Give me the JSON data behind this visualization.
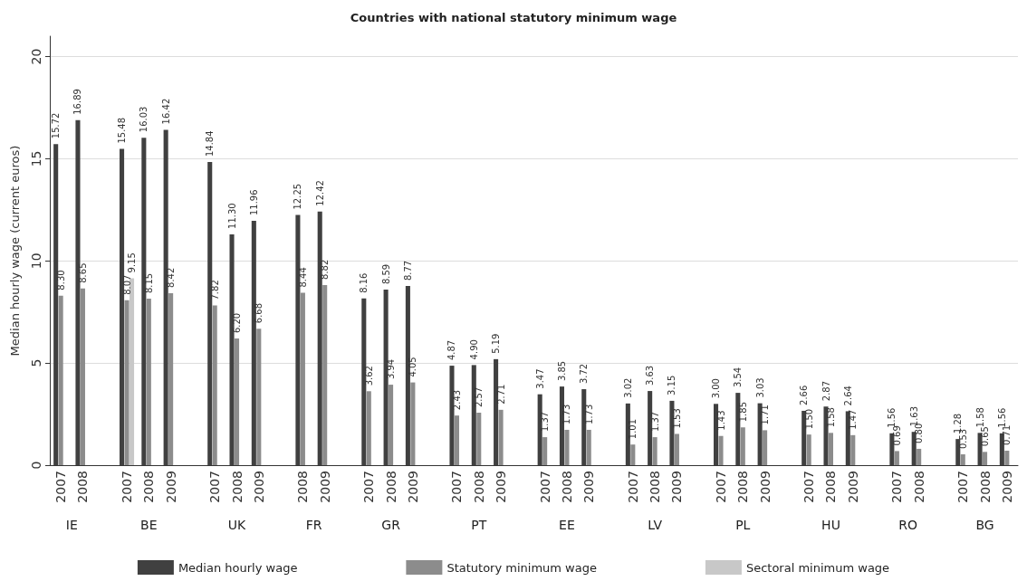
{
  "chart_data": {
    "type": "bar",
    "title": "Countries with national statutory minimum wage",
    "ylabel": "Median hourly wage (current euros)",
    "categories": [
      "2007",
      "2008",
      null,
      "2007",
      "2008",
      "2009",
      null,
      "2007",
      "2008",
      "2009",
      null,
      "2008",
      "2009",
      null,
      "2007",
      "2008",
      "2009",
      null,
      "2007",
      "2008",
      "2009",
      null,
      "2007",
      "2008",
      "2009",
      null,
      "2007",
      "2008",
      "2009",
      null,
      "2007",
      "2008",
      "2009",
      null,
      "2007",
      "2008",
      "2009",
      null,
      "2007",
      "2008",
      null,
      "2007",
      "2008",
      "2009"
    ],
    "annotations": [
      "IE",
      "BE",
      "UK",
      "FR",
      "GR",
      "PT",
      "EE",
      "LV",
      "PL",
      "HU",
      "RO",
      "BG"
    ],
    "series": [
      {
        "name": "Median hourly wage",
        "color": "#404040",
        "values": [
          15.72,
          16.89,
          null,
          15.48,
          16.03,
          16.42,
          null,
          14.84,
          11.3,
          11.96,
          null,
          12.25,
          12.42,
          null,
          8.16,
          8.59,
          8.77,
          null,
          4.87,
          4.9,
          5.19,
          null,
          3.47,
          3.85,
          3.72,
          null,
          3.02,
          3.63,
          3.15,
          null,
          3.0,
          3.54,
          3.03,
          null,
          2.66,
          2.87,
          2.64,
          null,
          1.56,
          1.63,
          null,
          1.28,
          1.58,
          1.56
        ],
        "value_labels": [
          "15.72",
          "16.89",
          null,
          "15.48",
          "16.03",
          "16.42",
          null,
          "14.84",
          "11.30",
          "11.96",
          null,
          "12.25",
          "12.42",
          null,
          "8.16",
          "8.59",
          "8.77",
          null,
          "4.87",
          "4.90",
          "5.19",
          null,
          "3.47",
          "3.85",
          "3.72",
          null,
          "3.02",
          "3.63",
          "3.15",
          null,
          "3.00",
          "3.54",
          "3.03",
          null,
          "2.66",
          "2.87",
          "2.64",
          null,
          "1.56",
          "1.63",
          null,
          "1.28",
          "1.58",
          "1.56"
        ]
      },
      {
        "name": "Statutory minimum wage",
        "color": "#8c8c8c",
        "values": [
          8.3,
          8.65,
          null,
          8.07,
          8.15,
          8.42,
          null,
          7.82,
          6.2,
          6.68,
          null,
          8.44,
          8.82,
          null,
          3.62,
          3.94,
          4.05,
          null,
          2.43,
          2.57,
          2.71,
          null,
          1.37,
          1.73,
          1.73,
          null,
          1.01,
          1.37,
          1.53,
          null,
          1.43,
          1.85,
          1.71,
          null,
          1.5,
          1.58,
          1.47,
          null,
          0.69,
          0.8,
          null,
          0.53,
          0.65,
          0.71
        ],
        "value_labels": [
          "8.30",
          "8.65",
          null,
          "8.07",
          "8.15",
          "8.42",
          null,
          "7.82",
          "6.20",
          "6.68",
          null,
          "8.44",
          "8.82",
          null,
          "3.62",
          "3.94",
          "4.05",
          null,
          "2.43",
          "2.57",
          "2.71",
          null,
          "1.37",
          "1.73",
          "1.73",
          null,
          "1.01",
          "1.37",
          "1.53",
          null,
          "1.43",
          "1.85",
          "1.71",
          null,
          "1.50",
          "1.58",
          "1.47",
          null,
          "0.69",
          "0.80",
          null,
          "0.53",
          "0.65",
          "0.71"
        ]
      },
      {
        "name": "Sectoral minimum wage",
        "color": "#c8c8c8",
        "values": [
          null,
          null,
          null,
          9.15,
          null,
          null,
          null,
          null,
          null,
          null,
          null,
          null,
          null,
          null,
          null,
          null,
          null,
          null,
          null,
          null,
          null,
          null,
          null,
          null,
          null,
          null,
          null,
          null,
          null,
          null,
          null,
          null,
          null,
          null,
          null,
          null,
          null,
          null,
          null,
          null,
          null,
          null,
          null,
          null
        ],
        "value_labels": [
          null,
          null,
          null,
          "9.15",
          null,
          null,
          null,
          null,
          null,
          null,
          null,
          null,
          null,
          null,
          null,
          null,
          null,
          null,
          null,
          null,
          null,
          null,
          null,
          null,
          null,
          null,
          null,
          null,
          null,
          null,
          null,
          null,
          null,
          null,
          null,
          null,
          null,
          null,
          null,
          null,
          null,
          null,
          null,
          null
        ]
      }
    ],
    "ylim": [
      0,
      21
    ],
    "yticks": [
      0,
      5,
      10,
      15,
      20
    ],
    "grid": "y",
    "legend": "bottom"
  }
}
